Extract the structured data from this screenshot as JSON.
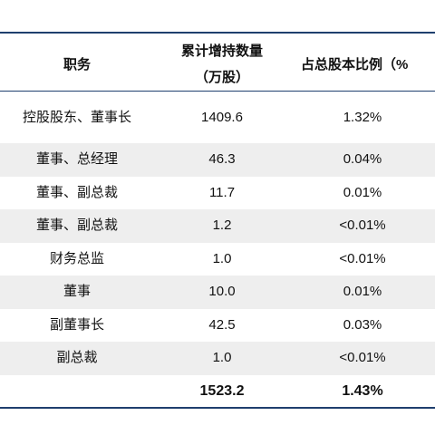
{
  "table": {
    "headers": {
      "position": "职务",
      "shares_line1": "累计增持数量",
      "shares_line2": "（万股）",
      "ratio": "占总股本比例（%"
    },
    "rows": [
      {
        "position": "控股股东、董事长",
        "shares": "1409.6",
        "ratio": "1.32%"
      },
      {
        "position": "董事、总经理",
        "shares": "46.3",
        "ratio": "0.04%"
      },
      {
        "position": "董事、副总裁",
        "shares": "11.7",
        "ratio": "0.01%"
      },
      {
        "position": "董事、副总裁",
        "shares": "1.2",
        "ratio": "<0.01%"
      },
      {
        "position": "财务总监",
        "shares": "1.0",
        "ratio": "<0.01%"
      },
      {
        "position": "董事",
        "shares": "10.0",
        "ratio": "0.01%"
      },
      {
        "position": "副董事长",
        "shares": "42.5",
        "ratio": "0.03%"
      },
      {
        "position": "副总裁",
        "shares": "1.0",
        "ratio": "<0.01%"
      }
    ],
    "total": {
      "position": "",
      "shares": "1523.2",
      "ratio": "1.43%"
    }
  }
}
